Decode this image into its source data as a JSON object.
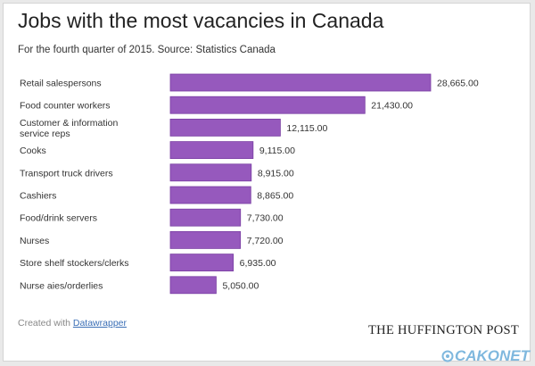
{
  "title": "Jobs with the most vacancies in Canada",
  "subtitle": "For the fourth quarter of 2015. Source: Statistics Canada",
  "footer": {
    "created_with": "Created with",
    "link_text": "Datawrapper",
    "brand": "THE HUFFINGTON POST",
    "watermark": "CAKONET"
  },
  "colors": {
    "bar": "#9659bd",
    "bar_border": "#7a3fa3",
    "watermark": "#7fb8de"
  },
  "chart_data": {
    "type": "bar",
    "orientation": "horizontal",
    "title": "Jobs with the most vacancies in Canada",
    "subtitle": "For the fourth quarter of 2015. Source: Statistics Canada",
    "categories": [
      [
        "Retail salespersons"
      ],
      [
        "Food counter workers"
      ],
      [
        "Customer & information",
        "service reps"
      ],
      [
        "Cooks"
      ],
      [
        "Transport truck drivers"
      ],
      [
        "Cashiers"
      ],
      [
        "Food/drink servers"
      ],
      [
        "Nurses"
      ],
      [
        "Store shelf stockers/clerks"
      ],
      [
        "Nurse aies/orderlies"
      ]
    ],
    "values": [
      28665,
      21430,
      12115,
      9115,
      8915,
      8865,
      7730,
      7720,
      6935,
      5050
    ],
    "value_labels": [
      "28,665.00",
      "21,430.00",
      "12,115.00",
      "9,115.00",
      "8,915.00",
      "8,865.00",
      "7,730.00",
      "7,720.00",
      "6,935.00",
      "5,050.00"
    ],
    "xlim": [
      0,
      28665
    ],
    "grid": false,
    "legend": "none"
  }
}
